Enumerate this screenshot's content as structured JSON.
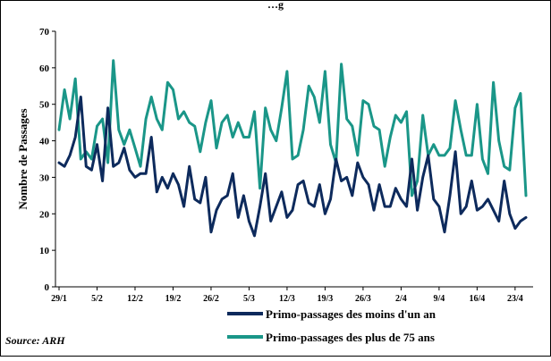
{
  "chart_data": {
    "type": "line",
    "title": "…g",
    "xlabel": "",
    "ylabel": "Nombre de Passages",
    "ylim": [
      0,
      70
    ],
    "yticks": [
      0,
      10,
      20,
      30,
      40,
      50,
      60,
      70
    ],
    "grid": false,
    "x_tick_labels": [
      "29/1",
      "5/2",
      "12/2",
      "19/2",
      "26/2",
      "5/3",
      "12/3",
      "19/3",
      "26/3",
      "2/4",
      "9/4",
      "16/4",
      "23/4"
    ],
    "x_tick_day_index": [
      0,
      7,
      14,
      21,
      28,
      35,
      42,
      49,
      56,
      63,
      70,
      77,
      84
    ],
    "legend_position": "bottom",
    "source": "Source: ARH",
    "series": [
      {
        "name": "Primo-passages des moins d'un an",
        "color": "#0d2a5c",
        "values": [
          34,
          33,
          36,
          41,
          52,
          33,
          32,
          39,
          29,
          49,
          33,
          34,
          38,
          32,
          30,
          31,
          31,
          41,
          26,
          30,
          27,
          31,
          28,
          22,
          33,
          24,
          23,
          30,
          15,
          21,
          24,
          25,
          31,
          19,
          25,
          18,
          14,
          22,
          31,
          18,
          22,
          26,
          19,
          21,
          28,
          29,
          23,
          22,
          28,
          20,
          24,
          35,
          29,
          30,
          25,
          34,
          30,
          28,
          21,
          28,
          22,
          22,
          27,
          24,
          22,
          35,
          21,
          30,
          36,
          24,
          22,
          15,
          25,
          37,
          20,
          22,
          29,
          21,
          22,
          24,
          21,
          18,
          29,
          20,
          16,
          18,
          19
        ]
      },
      {
        "name": "Primo-passages des plus de 75 ans",
        "color": "#1a9688",
        "values": [
          43,
          54,
          46,
          57,
          35,
          37,
          35,
          44,
          46,
          34,
          62,
          43,
          39,
          43,
          38,
          33,
          46,
          52,
          46,
          43,
          56,
          54,
          46,
          48,
          45,
          44,
          37,
          45,
          51,
          38,
          45,
          47,
          41,
          45,
          41,
          41,
          48,
          27,
          49,
          43,
          40,
          49,
          59,
          35,
          36,
          43,
          55,
          52,
          45,
          59,
          39,
          34,
          61,
          46,
          44,
          36,
          51,
          50,
          44,
          43,
          33,
          41,
          47,
          45,
          48,
          25,
          29,
          47,
          36,
          39,
          36,
          36,
          38,
          51,
          43,
          36,
          36,
          50,
          35,
          31,
          56,
          40,
          33,
          32,
          49,
          53,
          25
        ]
      }
    ]
  }
}
